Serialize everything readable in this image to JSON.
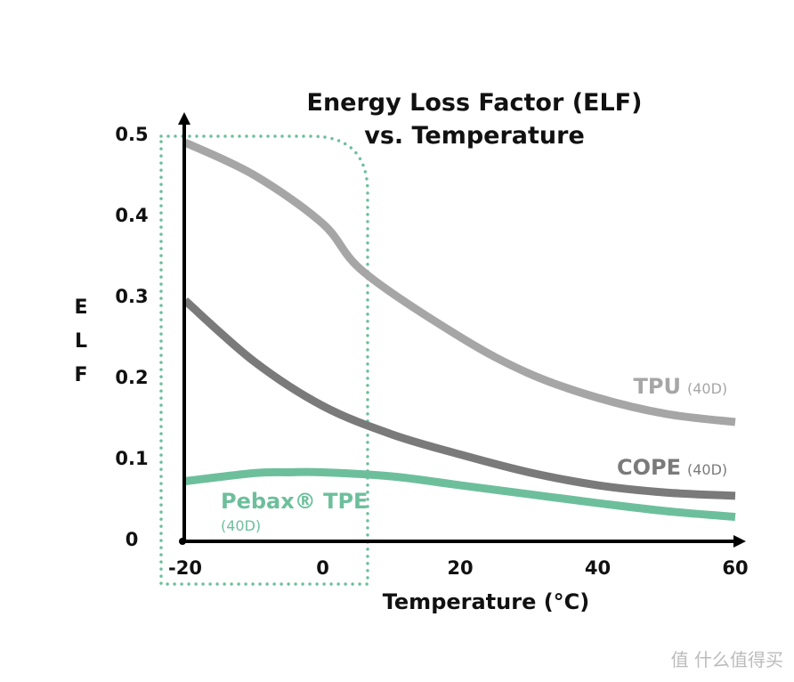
{
  "chart_data": {
    "type": "line",
    "title": [
      "Energy Loss Factor (ELF)",
      "vs. Temperature"
    ],
    "xlabel": "Temperature (°C)",
    "ylabel": "ELF",
    "xlim": [
      -20,
      60
    ],
    "ylim": [
      0,
      0.5
    ],
    "xticks": [
      "-20",
      "0",
      "20",
      "40",
      "60"
    ],
    "yticks": [
      "0",
      "0.1",
      "0.2",
      "0.3",
      "0.4",
      "0.5"
    ],
    "grid": false,
    "series": [
      {
        "name": "TPU",
        "grade": "(40D)",
        "color": "#a6a6a6",
        "x": [
          -20,
          -10,
          0,
          6,
          20,
          30,
          40,
          50,
          60
        ],
        "values": [
          0.49,
          0.45,
          0.39,
          0.33,
          0.25,
          0.205,
          0.175,
          0.155,
          0.145
        ]
      },
      {
        "name": "COPE",
        "grade": "(40D)",
        "color": "#7a7a7a",
        "x": [
          -20,
          -10,
          0,
          10,
          20,
          30,
          40,
          50,
          60
        ],
        "values": [
          0.295,
          0.22,
          0.165,
          0.13,
          0.105,
          0.083,
          0.067,
          0.058,
          0.054
        ]
      },
      {
        "name": "Pebax® TPE",
        "grade": "(40D)",
        "color": "#6dbf9c",
        "x": [
          -20,
          -10,
          -5,
          0,
          10,
          20,
          30,
          40,
          50,
          60
        ],
        "values": [
          0.072,
          0.082,
          0.083,
          0.083,
          0.078,
          0.067,
          0.056,
          0.045,
          0.035,
          0.028
        ]
      }
    ],
    "annotation": "dotted highlight box over -25 to 7 °C",
    "highlight_color": "#6dbf9c"
  },
  "watermark": "值 什么值得买"
}
